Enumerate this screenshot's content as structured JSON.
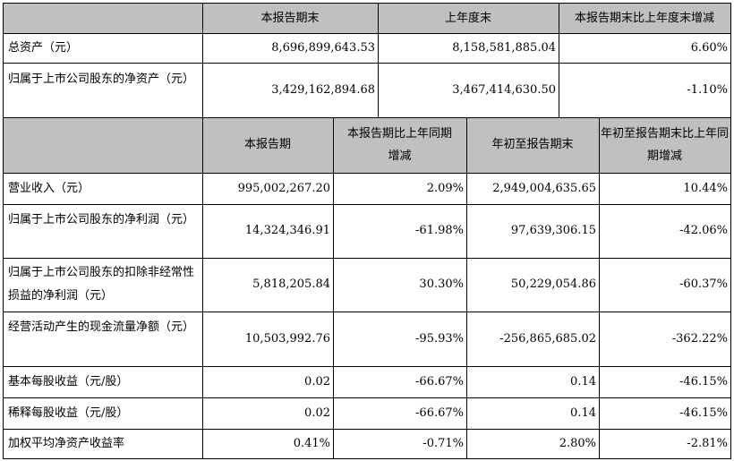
{
  "section1": {
    "headers": [
      "本报告期末",
      "上年度末",
      "本报告期末比上年度末增减"
    ],
    "rows": [
      {
        "label": "总资产（元）",
        "values": [
          "8,696,899,643.53",
          "8,158,581,885.04",
          "6.60%"
        ]
      },
      {
        "label": "归属于上市公司股东的净资产（元）",
        "values": [
          "3,429,162,894.68",
          "3,467,414,630.50",
          "-1.10%"
        ]
      }
    ]
  },
  "section2": {
    "headers": [
      "本报告期",
      "本报告期比上年同期增减",
      "年初至报告期末",
      "年初至报告期末比上年同期增减"
    ],
    "rows": [
      {
        "label": "营业收入（元）",
        "values": [
          "995,002,267.20",
          "2.09%",
          "2,949,004,635.65",
          "10.44%"
        ]
      },
      {
        "label": "归属于上市公司股东的净利润（元）",
        "values": [
          "14,324,346.91",
          "-61.98%",
          "97,639,306.15",
          "-42.06%"
        ]
      },
      {
        "label": "归属于上市公司股东的扣除非经常性损益的净利润（元）",
        "values": [
          "5,818,205.84",
          "30.30%",
          "50,229,054.86",
          "-60.37%"
        ]
      },
      {
        "label": "经营活动产生的现金流量净额（元）",
        "values": [
          "10,503,992.76",
          "-95.93%",
          "-256,865,685.02",
          "-362.22%"
        ]
      },
      {
        "label": "基本每股收益（元/股）",
        "values": [
          "0.02",
          "-66.67%",
          "0.14",
          "-46.15%"
        ]
      },
      {
        "label": "稀释每股收益（元/股）",
        "values": [
          "0.02",
          "-66.67%",
          "0.14",
          "-46.15%"
        ]
      },
      {
        "label": "加权平均净资产收益率",
        "values": [
          "0.41%",
          "-0.71%",
          "2.80%",
          "-2.81%"
        ]
      }
    ]
  }
}
